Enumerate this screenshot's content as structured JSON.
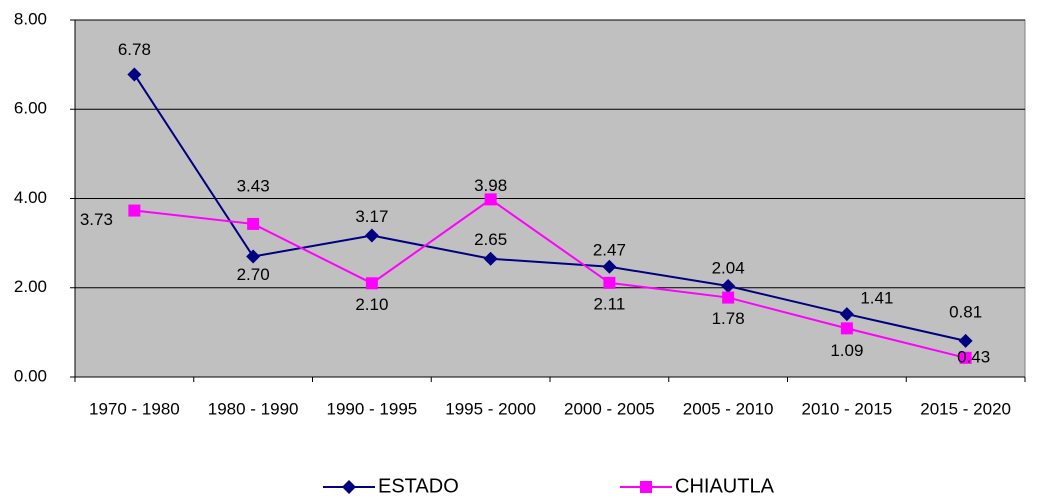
{
  "chart_data": {
    "type": "line",
    "categories": [
      "1970 - 1980",
      "1980 - 1990",
      "1990 - 1995",
      "1995 - 2000",
      "2000 - 2005",
      "2005 - 2010",
      "2010 - 2015",
      "2015 - 2020"
    ],
    "series": [
      {
        "name": "ESTADO",
        "color": "#000080",
        "marker": "diamond",
        "values": [
          6.78,
          2.7,
          3.17,
          2.65,
          2.47,
          2.04,
          1.41,
          0.81
        ],
        "value_labels": [
          "6.78",
          "2.70",
          "3.17",
          "2.65",
          "2.47",
          "2.04",
          "1.41",
          "0.81"
        ]
      },
      {
        "name": "CHIAUTLA",
        "color": "#ff00ff",
        "marker": "square",
        "values": [
          3.73,
          3.43,
          2.1,
          3.98,
          2.11,
          1.78,
          1.09,
          0.43
        ],
        "value_labels": [
          "3.73",
          "3.43",
          "2.10",
          "3.98",
          "2.11",
          "1.78",
          "1.09",
          "0.43"
        ]
      }
    ],
    "ylim": [
      0,
      8
    ],
    "yticks": [
      {
        "value": 0,
        "label": "0.00"
      },
      {
        "value": 2,
        "label": "2.00"
      },
      {
        "value": 4,
        "label": "4.00"
      },
      {
        "value": 6,
        "label": "6.00"
      },
      {
        "value": 8,
        "label": "8.00"
      }
    ],
    "grid": true,
    "plot_background": "#c0c0c0",
    "legend": "bottom"
  }
}
